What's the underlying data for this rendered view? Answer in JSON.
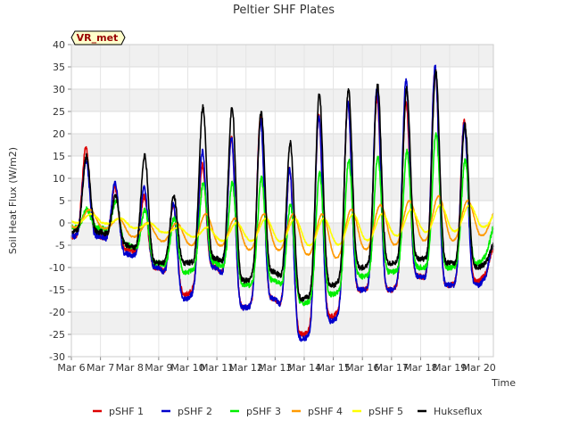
{
  "chart_data": {
    "type": "line",
    "title": "Peltier SHF Plates",
    "xlabel": "Time",
    "ylabel": "Soil Heat Flux (W/m2)",
    "ylim": [
      -30,
      40
    ],
    "xlim": [
      0,
      14.5
    ],
    "yticks": [
      -30,
      -25,
      -20,
      -15,
      -10,
      -5,
      0,
      5,
      10,
      15,
      20,
      25,
      30,
      35,
      40
    ],
    "x_tick_labels": [
      "Mar 6",
      "Mar 7",
      "Mar 8",
      "Mar 9",
      "Mar 10",
      "Mar 11",
      "Mar 12",
      "Mar 13",
      "Mar 14",
      "Mar 15",
      "Mar 16",
      "Mar 17",
      "Mar 18",
      "Mar 19",
      "Mar 20"
    ],
    "grid": true,
    "annotation": "VR_met",
    "legend_position": "bottom",
    "series": [
      {
        "name": "pSHF 1",
        "color": "#dd0000",
        "days": [
          0,
          1,
          2,
          3,
          4,
          5,
          6,
          7,
          8,
          9,
          10,
          11,
          12,
          13,
          14
        ],
        "peak": [
          17,
          8,
          6,
          4,
          13,
          19,
          24,
          12,
          24,
          27,
          28,
          27,
          35,
          23,
          -6
        ],
        "trough": [
          -3,
          -6,
          -10,
          -16,
          -10,
          -19,
          -17,
          -25,
          -21,
          -15,
          -15,
          -12,
          -14,
          -13,
          -8
        ]
      },
      {
        "name": "pSHF 2",
        "color": "#0000cc",
        "days": [
          0,
          1,
          2,
          3,
          4,
          5,
          6,
          7,
          8,
          9,
          10,
          11,
          12,
          13,
          14
        ],
        "peak": [
          14,
          9,
          8,
          4,
          16,
          19,
          23,
          12,
          24,
          27,
          30,
          32,
          35,
          22,
          -5
        ],
        "trough": [
          -3,
          -7,
          -10,
          -17,
          -10,
          -19,
          -17,
          -26,
          -22,
          -15,
          -15,
          -12,
          -14,
          -14,
          -7
        ]
      },
      {
        "name": "pSHF 3",
        "color": "#00ee00",
        "days": [
          0,
          1,
          2,
          3,
          4,
          5,
          6,
          7,
          8,
          9,
          10,
          11,
          12,
          13,
          14
        ],
        "peak": [
          3,
          5,
          3,
          1,
          9,
          9,
          10,
          4,
          11,
          14,
          15,
          16,
          20,
          14,
          -1
        ],
        "trough": [
          -1,
          -5,
          -9,
          -11,
          -9,
          -14,
          -13,
          -18,
          -16,
          -12,
          -11,
          -10,
          -10,
          -9,
          -2
        ]
      },
      {
        "name": "pSHF 4",
        "color": "#ff9900",
        "days": [
          0,
          1,
          2,
          3,
          4,
          5,
          6,
          7,
          8,
          9,
          10,
          11,
          12,
          13,
          14
        ],
        "peak": [
          3,
          1,
          0,
          0,
          2,
          1,
          2,
          2,
          2,
          3,
          4,
          5,
          6,
          5,
          3
        ],
        "trough": [
          -1,
          -3,
          -4,
          -5,
          -5,
          -6,
          -6,
          -7,
          -8,
          -6,
          -5,
          -4,
          -4,
          -3,
          -1
        ]
      },
      {
        "name": "pSHF 5",
        "color": "#ffff00",
        "days": [
          0,
          1,
          2,
          3,
          4,
          5,
          6,
          7,
          8,
          9,
          10,
          11,
          12,
          13,
          14
        ],
        "peak": [
          2,
          1,
          0,
          -1,
          -1,
          0,
          1,
          1,
          1,
          2,
          2,
          3,
          4,
          4,
          3
        ],
        "trough": [
          0,
          -1,
          -2,
          -3,
          -4,
          -4,
          -4,
          -5,
          -5,
          -4,
          -3,
          -2,
          -2,
          -1,
          0
        ]
      },
      {
        "name": "Hukseflux",
        "color": "#000000",
        "days": [
          0,
          1,
          2,
          3,
          4,
          5,
          6,
          7,
          8,
          9,
          10,
          11,
          12,
          13,
          14
        ],
        "peak": [
          15,
          6,
          15,
          6,
          26,
          26,
          25,
          18,
          29,
          30,
          31,
          30,
          34,
          22,
          -5
        ],
        "trough": [
          -2,
          -5,
          -9,
          -9,
          -8,
          -13,
          -11,
          -17,
          -14,
          -10,
          -9,
          -8,
          -9,
          -10,
          -6
        ]
      }
    ]
  }
}
